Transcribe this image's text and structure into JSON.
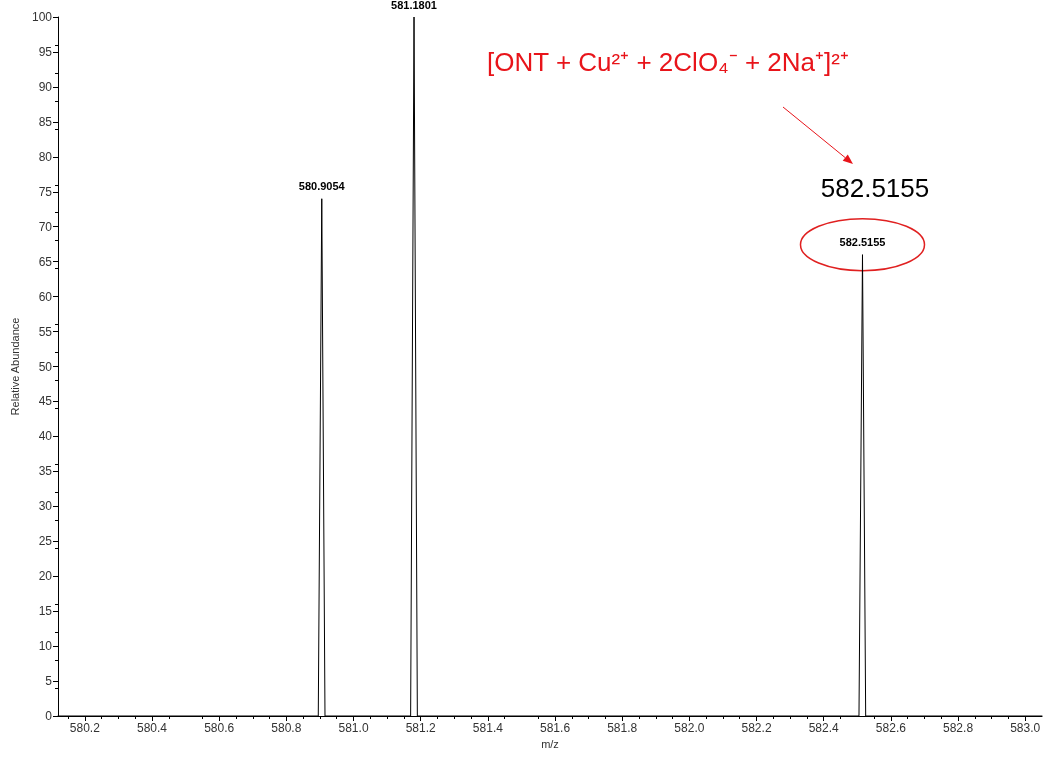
{
  "chart_data": {
    "type": "line",
    "xlabel": "m/z",
    "ylabel": "Relative Abundance",
    "x": [
      580.12,
      580.895,
      580.9054,
      580.915,
      581.17,
      581.1801,
      581.19,
      582.505,
      582.5155,
      582.525,
      583.05
    ],
    "series": [
      {
        "color": "#000000",
        "values": [
          0,
          0,
          74,
          0,
          0,
          100,
          0,
          0,
          66,
          0,
          0
        ]
      }
    ],
    "xlim": [
      580.12,
      583.05
    ],
    "xticks": [
      580.2,
      580.4,
      580.6,
      580.8,
      {
        "value": 581.0,
        "label": "581.0"
      },
      581.2,
      581.4,
      581.6,
      581.8,
      {
        "value": 582.0,
        "label": "582.0"
      },
      582.2,
      582.4,
      582.6,
      582.8,
      {
        "value": 583.0,
        "label": "583.0"
      }
    ],
    "ylim": [
      0,
      100
    ],
    "yticks": [
      0,
      5,
      10,
      15,
      20,
      25,
      30,
      35,
      40,
      45,
      50,
      55,
      60,
      65,
      70,
      75,
      80,
      85,
      90,
      95,
      100
    ],
    "grid": false,
    "marker": "none",
    "line_style": "solid",
    "annotations": [
      "[ONT + Cu²⁺ + 2ClO₄⁻ + 2Na⁺]²⁺",
      "582.5155",
      {
        "text": "580.9054",
        "x": 580.9054,
        "y": 74
      },
      {
        "text": "581.1801",
        "x": 581.1801,
        "y": 100
      },
      {
        "text": "582.5155",
        "x": 582.5155,
        "y": 66
      }
    ]
  }
}
